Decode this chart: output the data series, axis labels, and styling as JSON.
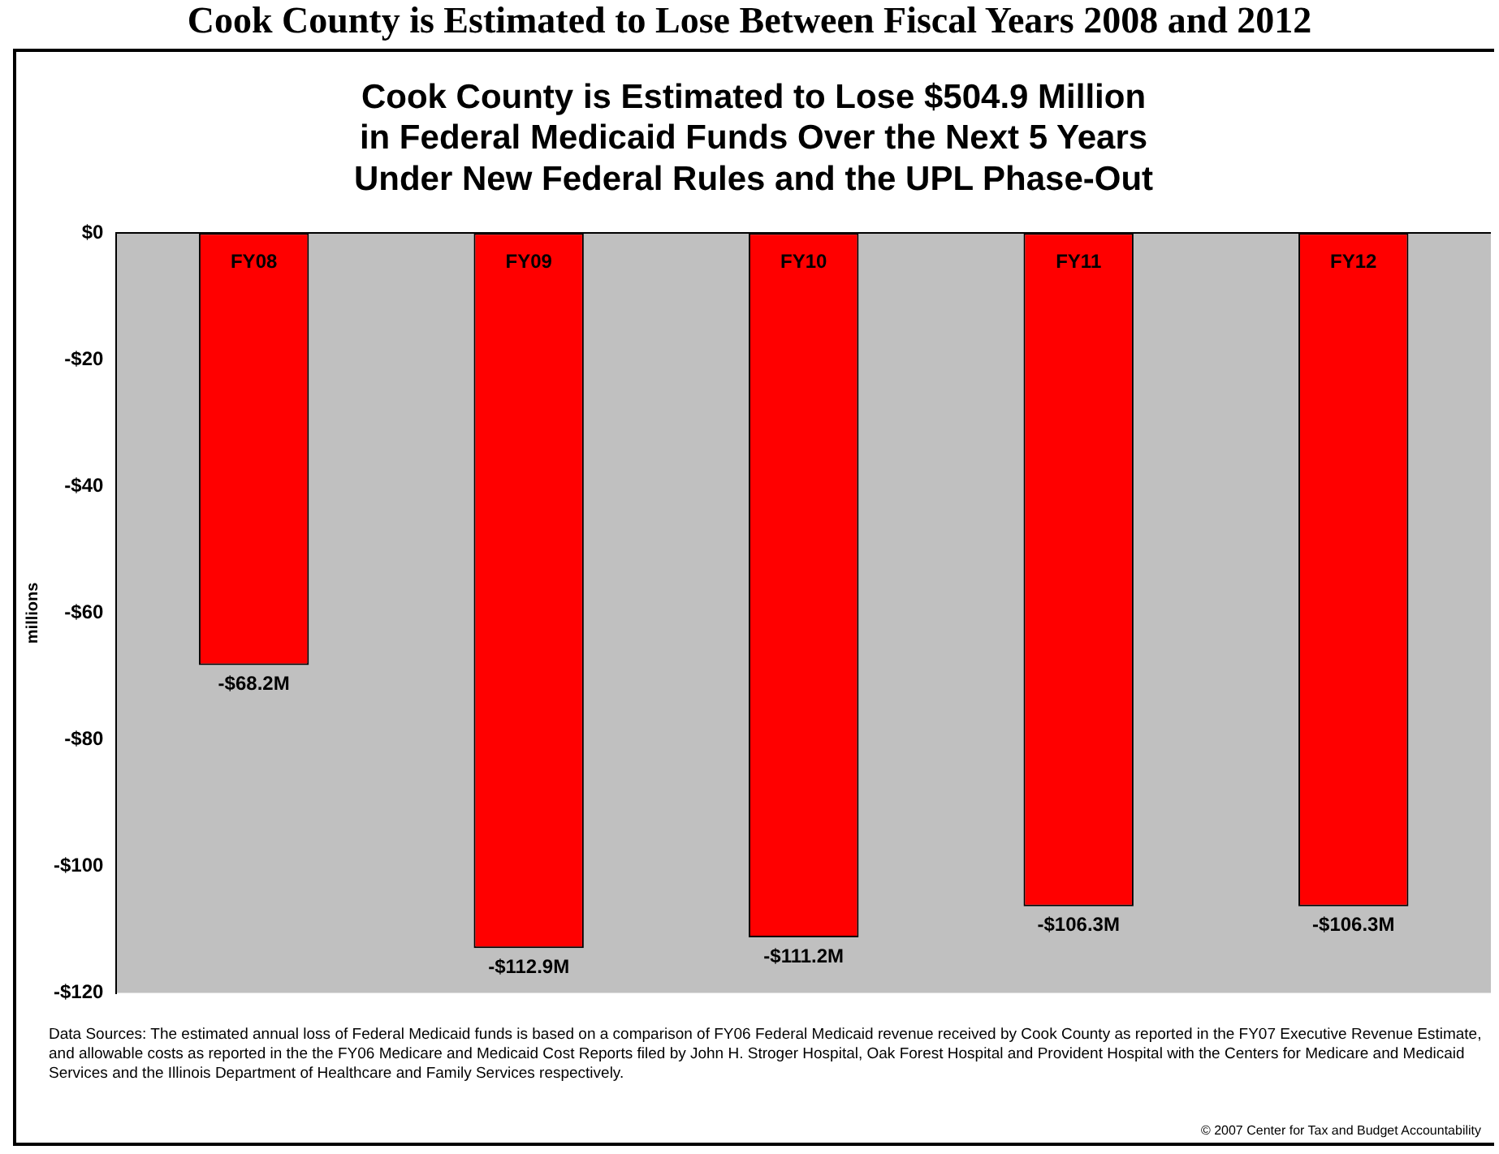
{
  "chart_data": {
    "type": "bar",
    "title": "Cook County is Estimated to Lose $504.9 Million\nin Federal Medicaid Funds Over the Next 5 Years\nUnder New Federal Rules and the UPL Phase-Out",
    "ylabel": "millions",
    "categories": [
      "FY08",
      "FY09",
      "FY10",
      "FY11",
      "FY12"
    ],
    "values": [
      -68.2,
      -112.9,
      -111.2,
      -106.3,
      -106.3
    ],
    "value_labels": [
      "-$68.2M",
      "-$112.9M",
      "-$111.2M",
      "-$106.3M",
      "-$106.3M"
    ],
    "color": "#ff0000",
    "ylim": [
      -120,
      0
    ],
    "yticks": [
      {
        "value": 0,
        "label": "$0"
      },
      {
        "value": -20,
        "label": "-$20"
      },
      {
        "value": -40,
        "label": "-$40"
      },
      {
        "value": -60,
        "label": "-$60"
      },
      {
        "value": -80,
        "label": "-$80"
      },
      {
        "value": -100,
        "label": "-$100"
      },
      {
        "value": -120,
        "label": "-$120"
      }
    ],
    "grid": false,
    "annotations": [
      "Cook County is Estimated to Lose Between Fiscal Years 2008 and 2012",
      "Data Sources: The estimated annual loss of Federal Medicaid funds is based on a comparison of FY06 Federal Medicaid revenue received by Cook County as reported in the FY07 Executive Revenue Estimate, and allowable costs as reported in the the FY06 Medicare and Medicaid Cost Reports filed by John H. Stroger Hospital, Oak Forest Hospital and Provident Hospital with the Centers for Medicare and Medicaid Services and the Illinois Department of Healthcare and Family Services respectively.",
      "© 2007 Center for Tax and Budget Accountability"
    ]
  }
}
